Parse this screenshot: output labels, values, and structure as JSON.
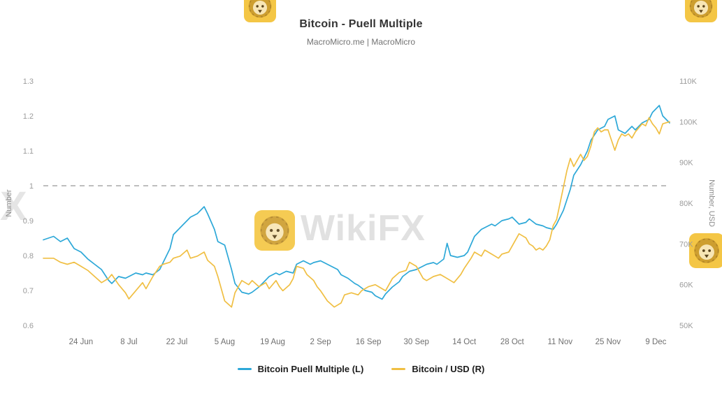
{
  "watermark": {
    "brand": "WikiFX",
    "letter": "X",
    "color": "#F4C236"
  },
  "chart_data": {
    "type": "line",
    "title": "Bitcoin - Puell Multiple",
    "subtitle": "MacroMicro.me | MacroMicro",
    "grid": "off",
    "legend_position": "bottom",
    "x_ticks": [
      "24 Jun",
      "8 Jul",
      "22 Jul",
      "5 Aug",
      "19 Aug",
      "2 Sep",
      "16 Sep",
      "30 Sep",
      "14 Oct",
      "28 Oct",
      "11 Nov",
      "25 Nov",
      "9 Dec"
    ],
    "x_tick_days": [
      11,
      25,
      39,
      53,
      67,
      81,
      95,
      109,
      123,
      137,
      151,
      165,
      179
    ],
    "x_domain": [
      0,
      183
    ],
    "left_axis": {
      "label": "Number",
      "min": 0.6,
      "max": 1.3,
      "ticks": [
        "1.3",
        "1.2",
        "1.1",
        "1",
        "0.9",
        "0.8",
        "0.7",
        "0.6"
      ]
    },
    "right_axis": {
      "label": "Number, USD",
      "min": 50000,
      "max": 110000,
      "ticks": [
        "110K",
        "100K",
        "90K",
        "80K",
        "70K",
        "60K",
        "50K"
      ]
    },
    "reference_line": {
      "value": 1,
      "axis": "left",
      "color": "#A9A9A9",
      "style": "dashed"
    },
    "series": [
      {
        "id": "puell",
        "name": "Bitcoin Puell Multiple (L)",
        "axis": "left",
        "color": "#2DA8D8",
        "points": [
          [
            0,
            0.845
          ],
          [
            3,
            0.855
          ],
          [
            5,
            0.84
          ],
          [
            7,
            0.85
          ],
          [
            9,
            0.82
          ],
          [
            11,
            0.81
          ],
          [
            13,
            0.79
          ],
          [
            15,
            0.775
          ],
          [
            17,
            0.76
          ],
          [
            19,
            0.73
          ],
          [
            20,
            0.72
          ],
          [
            22,
            0.74
          ],
          [
            24,
            0.735
          ],
          [
            25,
            0.74
          ],
          [
            27,
            0.75
          ],
          [
            29,
            0.745
          ],
          [
            30,
            0.75
          ],
          [
            32,
            0.745
          ],
          [
            34,
            0.76
          ],
          [
            35,
            0.78
          ],
          [
            37,
            0.82
          ],
          [
            38,
            0.86
          ],
          [
            40,
            0.88
          ],
          [
            42,
            0.9
          ],
          [
            43,
            0.91
          ],
          [
            45,
            0.92
          ],
          [
            47,
            0.94
          ],
          [
            48,
            0.92
          ],
          [
            50,
            0.875
          ],
          [
            51,
            0.84
          ],
          [
            53,
            0.83
          ],
          [
            55,
            0.76
          ],
          [
            56,
            0.72
          ],
          [
            58,
            0.695
          ],
          [
            60,
            0.69
          ],
          [
            61,
            0.695
          ],
          [
            63,
            0.71
          ],
          [
            65,
            0.73
          ],
          [
            66,
            0.74
          ],
          [
            68,
            0.75
          ],
          [
            69,
            0.745
          ],
          [
            71,
            0.755
          ],
          [
            73,
            0.75
          ],
          [
            74,
            0.775
          ],
          [
            76,
            0.785
          ],
          [
            78,
            0.775
          ],
          [
            79,
            0.78
          ],
          [
            81,
            0.785
          ],
          [
            83,
            0.775
          ],
          [
            84,
            0.77
          ],
          [
            86,
            0.76
          ],
          [
            87,
            0.745
          ],
          [
            89,
            0.735
          ],
          [
            91,
            0.72
          ],
          [
            92,
            0.715
          ],
          [
            94,
            0.7
          ],
          [
            96,
            0.695
          ],
          [
            97,
            0.685
          ],
          [
            99,
            0.675
          ],
          [
            100,
            0.69
          ],
          [
            102,
            0.71
          ],
          [
            104,
            0.725
          ],
          [
            105,
            0.74
          ],
          [
            107,
            0.755
          ],
          [
            109,
            0.76
          ],
          [
            110,
            0.765
          ],
          [
            112,
            0.775
          ],
          [
            114,
            0.78
          ],
          [
            115,
            0.775
          ],
          [
            117,
            0.79
          ],
          [
            118,
            0.835
          ],
          [
            119,
            0.8
          ],
          [
            121,
            0.795
          ],
          [
            123,
            0.8
          ],
          [
            124,
            0.81
          ],
          [
            126,
            0.855
          ],
          [
            128,
            0.875
          ],
          [
            129,
            0.88
          ],
          [
            131,
            0.89
          ],
          [
            132,
            0.885
          ],
          [
            134,
            0.9
          ],
          [
            136,
            0.905
          ],
          [
            137,
            0.91
          ],
          [
            139,
            0.89
          ],
          [
            141,
            0.895
          ],
          [
            142,
            0.905
          ],
          [
            144,
            0.89
          ],
          [
            146,
            0.885
          ],
          [
            147,
            0.88
          ],
          [
            149,
            0.875
          ],
          [
            150,
            0.89
          ],
          [
            152,
            0.93
          ],
          [
            154,
            0.99
          ],
          [
            155,
            1.03
          ],
          [
            157,
            1.06
          ],
          [
            159,
            1.1
          ],
          [
            160,
            1.13
          ],
          [
            162,
            1.16
          ],
          [
            164,
            1.17
          ],
          [
            165,
            1.19
          ],
          [
            167,
            1.2
          ],
          [
            168,
            1.16
          ],
          [
            170,
            1.15
          ],
          [
            172,
            1.17
          ],
          [
            173,
            1.16
          ],
          [
            175,
            1.18
          ],
          [
            177,
            1.19
          ],
          [
            178,
            1.21
          ],
          [
            180,
            1.23
          ],
          [
            181,
            1.2
          ],
          [
            183,
            1.18
          ]
        ]
      },
      {
        "id": "btcusd",
        "name": "Bitcoin / USD (R)",
        "axis": "right",
        "color": "#F0BF43",
        "points": [
          [
            0,
            66500
          ],
          [
            3,
            66500
          ],
          [
            5,
            65500
          ],
          [
            7,
            65000
          ],
          [
            9,
            65500
          ],
          [
            11,
            64500
          ],
          [
            13,
            63500
          ],
          [
            15,
            62000
          ],
          [
            17,
            60500
          ],
          [
            19,
            61500
          ],
          [
            20,
            62500
          ],
          [
            22,
            60000
          ],
          [
            24,
            58000
          ],
          [
            25,
            56500
          ],
          [
            27,
            58500
          ],
          [
            29,
            60500
          ],
          [
            30,
            59000
          ],
          [
            32,
            62000
          ],
          [
            34,
            64500
          ],
          [
            35,
            65000
          ],
          [
            37,
            65500
          ],
          [
            38,
            66500
          ],
          [
            40,
            67000
          ],
          [
            42,
            68500
          ],
          [
            43,
            66500
          ],
          [
            45,
            67000
          ],
          [
            47,
            68000
          ],
          [
            48,
            66000
          ],
          [
            50,
            64500
          ],
          [
            51,
            62000
          ],
          [
            53,
            56000
          ],
          [
            55,
            54500
          ],
          [
            56,
            58000
          ],
          [
            58,
            61000
          ],
          [
            60,
            60000
          ],
          [
            61,
            61000
          ],
          [
            63,
            59500
          ],
          [
            65,
            60500
          ],
          [
            66,
            59000
          ],
          [
            68,
            61000
          ],
          [
            69,
            59500
          ],
          [
            70,
            58500
          ],
          [
            72,
            60000
          ],
          [
            73,
            61500
          ],
          [
            74,
            64500
          ],
          [
            76,
            64000
          ],
          [
            77,
            62500
          ],
          [
            79,
            61000
          ],
          [
            80,
            59500
          ],
          [
            81,
            58500
          ],
          [
            83,
            56000
          ],
          [
            85,
            54500
          ],
          [
            87,
            55500
          ],
          [
            88,
            57500
          ],
          [
            90,
            58000
          ],
          [
            92,
            57500
          ],
          [
            93,
            58500
          ],
          [
            95,
            59500
          ],
          [
            97,
            60000
          ],
          [
            98,
            59500
          ],
          [
            100,
            58500
          ],
          [
            102,
            61500
          ],
          [
            104,
            63000
          ],
          [
            106,
            63500
          ],
          [
            107,
            65500
          ],
          [
            109,
            64500
          ],
          [
            111,
            61500
          ],
          [
            112,
            61000
          ],
          [
            114,
            62000
          ],
          [
            116,
            62500
          ],
          [
            117,
            62000
          ],
          [
            119,
            61000
          ],
          [
            120,
            60500
          ],
          [
            122,
            62500
          ],
          [
            123,
            64000
          ],
          [
            125,
            66500
          ],
          [
            126,
            68000
          ],
          [
            128,
            67000
          ],
          [
            129,
            68500
          ],
          [
            131,
            67500
          ],
          [
            132,
            67000
          ],
          [
            133,
            66500
          ],
          [
            134,
            67500
          ],
          [
            136,
            68000
          ],
          [
            137,
            69500
          ],
          [
            139,
            72500
          ],
          [
            140,
            72000
          ],
          [
            141,
            71500
          ],
          [
            142,
            70000
          ],
          [
            143,
            69500
          ],
          [
            144,
            68500
          ],
          [
            145,
            69000
          ],
          [
            146,
            68500
          ],
          [
            147,
            69500
          ],
          [
            148,
            71000
          ],
          [
            149,
            74500
          ],
          [
            150,
            76000
          ],
          [
            151,
            80000
          ],
          [
            153,
            88000
          ],
          [
            154,
            91000
          ],
          [
            155,
            89000
          ],
          [
            156,
            90500
          ],
          [
            157,
            92000
          ],
          [
            158,
            90500
          ],
          [
            159,
            91500
          ],
          [
            160,
            94000
          ],
          [
            161,
            97500
          ],
          [
            162,
            98500
          ],
          [
            163,
            97500
          ],
          [
            164,
            98000
          ],
          [
            165,
            98000
          ],
          [
            166,
            95500
          ],
          [
            167,
            93000
          ],
          [
            168,
            95500
          ],
          [
            169,
            97000
          ],
          [
            170,
            96500
          ],
          [
            171,
            97000
          ],
          [
            172,
            96000
          ],
          [
            173,
            97500
          ],
          [
            174,
            98500
          ],
          [
            175,
            99500
          ],
          [
            176,
            99000
          ],
          [
            177,
            101000
          ],
          [
            178,
            99500
          ],
          [
            179,
            98500
          ],
          [
            180,
            97000
          ],
          [
            181,
            99500
          ],
          [
            183,
            100000
          ]
        ]
      }
    ]
  }
}
